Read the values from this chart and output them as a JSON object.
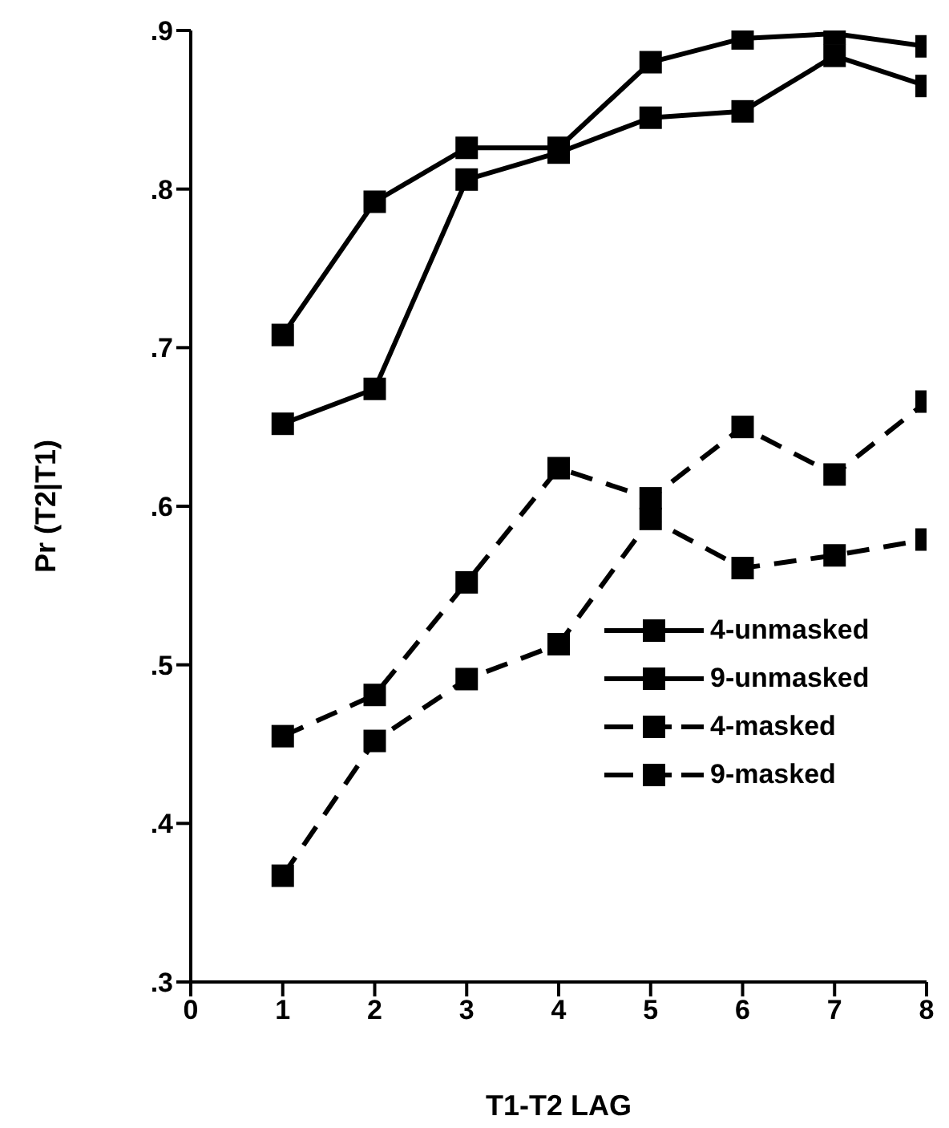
{
  "chart_data": {
    "type": "line",
    "xlabel": "T1-T2 LAG",
    "ylabel": "Pr (T2|T1)",
    "x": [
      1,
      2,
      3,
      4,
      5,
      6,
      7,
      8
    ],
    "series": [
      {
        "name": "4-unmasked",
        "color": "#000000",
        "line_style": "solid",
        "values": [
          0.708,
          0.792,
          0.826,
          0.826,
          0.88,
          0.895,
          0.898,
          0.89
        ]
      },
      {
        "name": "9-unmasked",
        "color": "#000000",
        "line_style": "solid",
        "values": [
          0.652,
          0.674,
          0.806,
          0.823,
          0.845,
          0.849,
          0.884,
          0.865
        ]
      },
      {
        "name": "4-masked",
        "color": "#000000",
        "line_style": "dashed",
        "values": [
          0.455,
          0.481,
          0.552,
          0.624,
          0.605,
          0.65,
          0.62,
          0.666
        ]
      },
      {
        "name": "9-masked",
        "color": "#000000",
        "line_style": "dashed",
        "values": [
          0.367,
          0.452,
          0.491,
          0.513,
          0.592,
          0.561,
          0.569,
          0.579
        ]
      }
    ],
    "xlim": [
      0,
      8
    ],
    "xticks": [
      0,
      1,
      2,
      3,
      4,
      5,
      6,
      7,
      8
    ],
    "ylim": [
      0.3,
      0.9
    ],
    "yticks": [
      {
        "value": 0.3,
        "label": ".3"
      },
      {
        "value": 0.4,
        "label": ".4"
      },
      {
        "value": 0.5,
        "label": ".5"
      },
      {
        "value": 0.6,
        "label": ".6"
      },
      {
        "value": 0.7,
        "label": ".7"
      },
      {
        "value": 0.8,
        "label": ".8"
      },
      {
        "value": 0.9,
        "label": ".9"
      }
    ],
    "marker": "square",
    "grid": false,
    "legend": "bottom right"
  }
}
